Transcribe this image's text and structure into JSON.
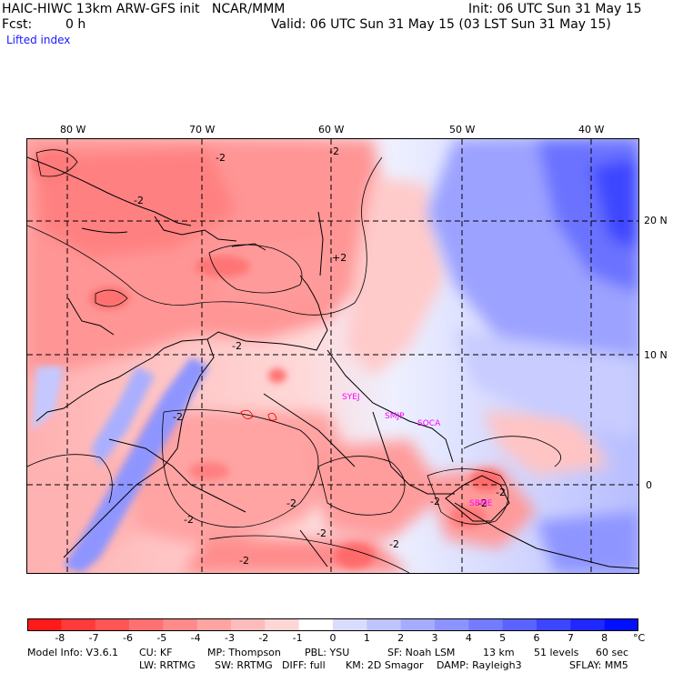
{
  "header": {
    "title_left": "HAIC-HIWC 13km ARW-GFS init   NCAR/MMM",
    "init": "Init: 06 UTC Sun 31 May 15",
    "fcst_label": "Fcst:",
    "fcst_value": "0 h",
    "valid": "Valid: 06 UTC Sun 31 May 15 (03 LST Sun 31 May 15)",
    "field": "Lifted index"
  },
  "axes": {
    "lon_labels": [
      "80 W",
      "70 W",
      "60 W",
      "50 W",
      "40 W"
    ],
    "lat_labels": [
      "20 N",
      "10 N",
      "0"
    ]
  },
  "contour_labels": [
    "-2",
    "-2",
    "-2",
    "+2",
    "-2",
    "-2",
    "-2",
    "-2",
    "-2",
    "-2",
    "-2",
    "-2",
    "-2",
    "-2"
  ],
  "stations": [
    "SYEJ",
    "SMJP",
    "SOCA",
    "SBME"
  ],
  "colorbar": {
    "ticks": [
      "-8",
      "-7",
      "-6",
      "-5",
      "-4",
      "-3",
      "-2",
      "-1",
      "0",
      "1",
      "2",
      "3",
      "4",
      "5",
      "6",
      "7",
      "8"
    ],
    "unit": "°C",
    "colors": [
      "#ff1a1a",
      "#ff3a3a",
      "#ff5555",
      "#ff7070",
      "#ff8a8a",
      "#ffa3a3",
      "#ffbcbc",
      "#ffd6d6",
      "#ffffff",
      "#d8dcff",
      "#bfc4ff",
      "#a5acff",
      "#8c93ff",
      "#737bff",
      "#5a62ff",
      "#3c46ff",
      "#1e28ff",
      "#0010ff"
    ]
  },
  "footer": {
    "line1": [
      "Model Info: V3.6.1",
      "CU: KF",
      "MP: Thompson",
      "PBL: YSU",
      "SF: Noah LSM",
      "13 km",
      "51 levels",
      "60 sec"
    ],
    "line2": [
      "LW: RRTMG",
      "SW: RRTMG",
      "DIFF: full",
      "KM: 2D Smagor",
      "DAMP: Rayleigh3",
      "SFLAY: MM5"
    ]
  },
  "colors": {
    "station_label": "#ff00ff",
    "contour": "#000000",
    "coast": "#000000"
  }
}
